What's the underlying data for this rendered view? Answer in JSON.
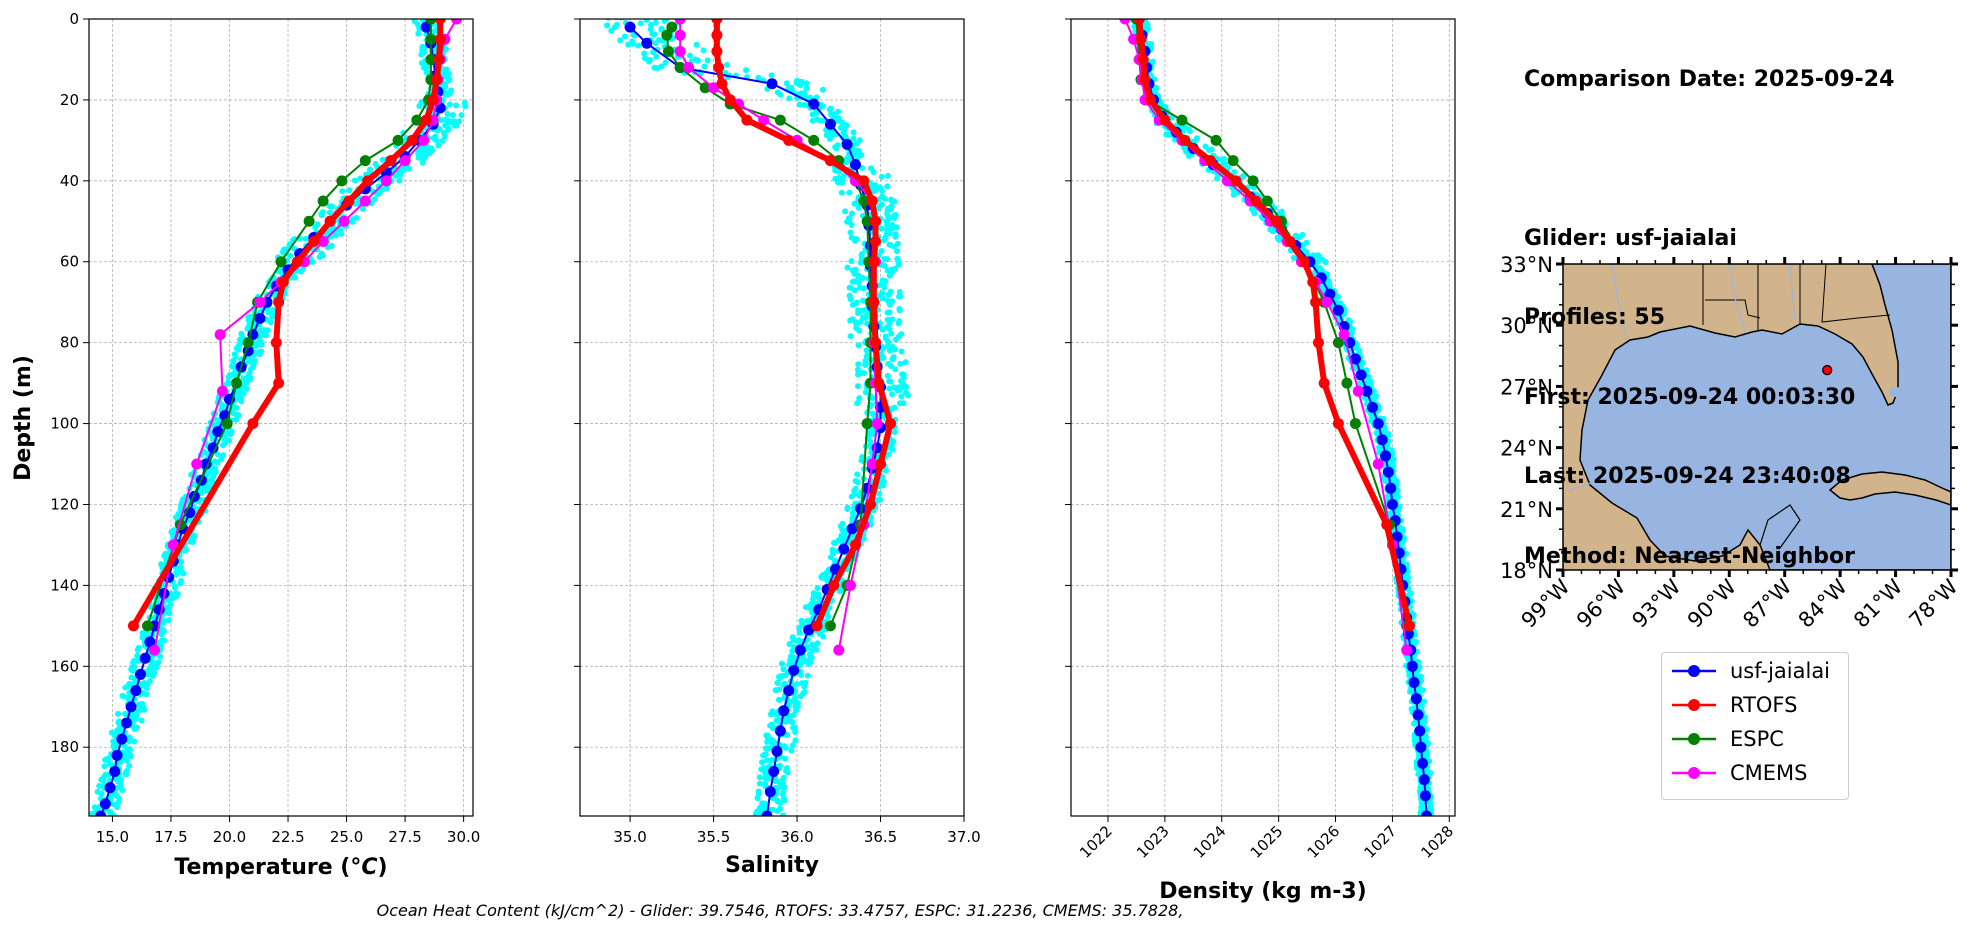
{
  "info": {
    "date_line": "Comparison Date: 2025-09-24",
    "glider_line": "Glider: usf-jaialai",
    "profiles_line": "Profiles: 55",
    "first_line": "First: 2025-09-24 00:03:30",
    "last_line": "Last: 2025-09-24 23:40:08",
    "method_line": "Method: Nearest-Neighbor"
  },
  "footer": "Ocean Heat Content (kJ/cm^2) - Glider: 39.7546,  RTOFS: 33.4757,  ESPC: 31.2236,  CMEMS: 35.7828,",
  "colors": {
    "glider": "#0000ff",
    "rtofs": "#ff0000",
    "espc": "#008000",
    "cmems": "#ff00ff",
    "raw": "#00ffff",
    "ocean": "#98b5e2",
    "land": "#d2b48c",
    "grid": "#b0b0b0"
  },
  "legend": [
    "usf-jaialai",
    "RTOFS",
    "ESPC",
    "CMEMS"
  ],
  "chart_data": [
    {
      "type": "line",
      "title": "",
      "xlabel": "Temperature (°C)",
      "ylabel": "Depth (m)",
      "xlim": [
        14.0,
        30.4
      ],
      "ylim": [
        197,
        0
      ],
      "xticks": [
        15.0,
        17.5,
        20.0,
        22.5,
        25.0,
        27.5,
        30.0
      ],
      "xtick_labels": [
        "15.0",
        "17.5",
        "20.0",
        "22.5",
        "25.0",
        "27.5",
        "30.0"
      ],
      "yticks": [
        0,
        20,
        40,
        60,
        80,
        100,
        120,
        140,
        160,
        180
      ],
      "ytick_labels": [
        "0",
        "20",
        "40",
        "60",
        "80",
        "100",
        "120",
        "140",
        "160",
        "180"
      ],
      "series": [
        {
          "name": "usf-jaialai",
          "depth": [
            2,
            6,
            10,
            14,
            18,
            22,
            26,
            30,
            34,
            38,
            42,
            46,
            50,
            54,
            58,
            62,
            66,
            70,
            74,
            78,
            82,
            86,
            90,
            94,
            98,
            102,
            106,
            110,
            114,
            118,
            122,
            126,
            130,
            134,
            138,
            142,
            146,
            150,
            154,
            158,
            162,
            166,
            170,
            174,
            178,
            182,
            186,
            190,
            194,
            197
          ],
          "values": [
            28.4,
            28.6,
            28.7,
            28.8,
            28.9,
            29.0,
            28.7,
            28.1,
            27.5,
            26.7,
            25.8,
            25.0,
            24.3,
            23.6,
            23.0,
            22.5,
            22.0,
            21.6,
            21.3,
            21.0,
            20.8,
            20.5,
            20.3,
            20.0,
            19.8,
            19.5,
            19.3,
            19.0,
            18.8,
            18.5,
            18.3,
            18.0,
            17.8,
            17.6,
            17.4,
            17.2,
            17.0,
            16.8,
            16.6,
            16.4,
            16.2,
            16.0,
            15.8,
            15.6,
            15.4,
            15.2,
            15.1,
            14.9,
            14.7,
            14.5
          ]
        },
        {
          "name": "RTOFS",
          "depth": [
            0,
            5,
            10,
            15,
            20,
            25,
            30,
            35,
            40,
            45,
            50,
            55,
            60,
            65,
            70,
            80,
            90,
            100,
            150
          ],
          "values": [
            29.0,
            29.0,
            28.95,
            28.85,
            28.7,
            28.4,
            27.8,
            26.9,
            25.9,
            25.1,
            24.3,
            23.6,
            22.9,
            22.3,
            22.1,
            22.0,
            22.1,
            21.0,
            15.9
          ]
        },
        {
          "name": "ESPC",
          "depth": [
            0,
            5,
            10,
            15,
            20,
            25,
            30,
            35,
            40,
            45,
            50,
            60,
            70,
            80,
            90,
            100,
            125,
            150
          ],
          "values": [
            28.6,
            28.6,
            28.6,
            28.6,
            28.5,
            28.0,
            27.2,
            25.8,
            24.8,
            24.0,
            23.4,
            22.2,
            21.2,
            20.8,
            20.3,
            19.9,
            17.9,
            16.5
          ]
        },
        {
          "name": "CMEMS",
          "depth": [
            0,
            5,
            10,
            15,
            20,
            25,
            30,
            35,
            40,
            45,
            50,
            55,
            60,
            65,
            70,
            78,
            92,
            110,
            130,
            156
          ],
          "values": [
            29.7,
            29.2,
            29.0,
            28.9,
            28.85,
            28.7,
            28.3,
            27.5,
            26.7,
            25.8,
            24.9,
            24.0,
            23.2,
            22.2,
            21.3,
            19.6,
            19.7,
            18.6,
            17.6,
            16.8
          ]
        }
      ]
    },
    {
      "type": "line",
      "title": "",
      "xlabel": "Salinity",
      "ylabel": "",
      "xlim": [
        34.7,
        37.0
      ],
      "ylim": [
        197,
        0
      ],
      "xticks": [
        35.0,
        35.5,
        36.0,
        36.5,
        37.0
      ],
      "xtick_labels": [
        "35.0",
        "35.5",
        "36.0",
        "36.5",
        "37.0"
      ],
      "yticks": [
        0,
        20,
        40,
        60,
        80,
        100,
        120,
        140,
        160,
        180
      ],
      "ytick_labels": [],
      "series": [
        {
          "name": "usf-jaialai",
          "depth": [
            2,
            6,
            12,
            16,
            21,
            26,
            31,
            36,
            41,
            46,
            51,
            56,
            61,
            66,
            71,
            76,
            81,
            86,
            91,
            96,
            101,
            106,
            111,
            116,
            121,
            126,
            131,
            136,
            141,
            146,
            151,
            156,
            161,
            166,
            171,
            176,
            181,
            186,
            191,
            197
          ],
          "values": [
            35.0,
            35.1,
            35.3,
            35.85,
            36.1,
            36.2,
            36.3,
            36.35,
            36.38,
            36.42,
            36.43,
            36.44,
            36.44,
            36.45,
            36.45,
            36.46,
            36.47,
            36.48,
            36.5,
            36.5,
            36.5,
            36.48,
            36.45,
            36.42,
            36.38,
            36.33,
            36.28,
            36.23,
            36.18,
            36.13,
            36.07,
            36.02,
            35.98,
            35.95,
            35.92,
            35.9,
            35.88,
            35.86,
            35.84,
            35.82
          ]
        },
        {
          "name": "RTOFS",
          "depth": [
            0,
            4,
            8,
            12,
            16,
            20,
            25,
            30,
            35,
            40,
            45,
            50,
            55,
            60,
            70,
            80,
            90,
            100,
            110,
            120,
            130,
            140,
            150
          ],
          "values": [
            35.52,
            35.52,
            35.52,
            35.53,
            35.55,
            35.6,
            35.7,
            35.95,
            36.2,
            36.4,
            36.45,
            36.47,
            36.47,
            36.46,
            36.46,
            36.47,
            36.49,
            36.56,
            36.5,
            36.44,
            36.35,
            36.22,
            36.12
          ]
        },
        {
          "name": "ESPC",
          "depth": [
            2,
            4,
            8,
            12,
            17,
            21,
            25,
            30,
            35,
            40,
            45,
            50,
            60,
            70,
            80,
            90,
            100,
            125,
            140,
            150
          ],
          "values": [
            35.25,
            35.22,
            35.23,
            35.3,
            35.45,
            35.6,
            35.9,
            36.1,
            36.25,
            36.35,
            36.4,
            36.42,
            36.43,
            36.44,
            36.44,
            36.44,
            36.42,
            36.38,
            36.3,
            36.2
          ]
        },
        {
          "name": "CMEMS",
          "depth": [
            0,
            4,
            8,
            12,
            17,
            21,
            25,
            30,
            35,
            40,
            45,
            50,
            60,
            70,
            80,
            90,
            100,
            110,
            125,
            140,
            156
          ],
          "values": [
            35.3,
            35.3,
            35.3,
            35.35,
            35.5,
            35.65,
            35.8,
            36.0,
            36.2,
            36.35,
            36.45,
            36.47,
            36.47,
            36.46,
            36.46,
            36.47,
            36.48,
            36.45,
            36.4,
            36.32,
            36.25
          ]
        }
      ]
    },
    {
      "type": "line",
      "title": "",
      "xlabel": "Density (kg m-3)",
      "ylabel": "",
      "xlim": [
        1021.35,
        1028.1
      ],
      "ylim": [
        197,
        0
      ],
      "xticks": [
        1022,
        1023,
        1024,
        1025,
        1026,
        1027,
        1028
      ],
      "xtick_labels": [
        "1022",
        "1023",
        "1024",
        "1025",
        "1026",
        "1027",
        "1028"
      ],
      "yticks": [
        0,
        20,
        40,
        60,
        80,
        100,
        120,
        140,
        160,
        180
      ],
      "ytick_labels": [],
      "series": [
        {
          "name": "usf-jaialai",
          "depth": [
            0,
            4,
            8,
            12,
            16,
            20,
            24,
            28,
            32,
            36,
            40,
            44,
            48,
            52,
            56,
            60,
            64,
            68,
            72,
            76,
            80,
            84,
            88,
            92,
            96,
            100,
            104,
            108,
            112,
            116,
            120,
            124,
            128,
            132,
            136,
            140,
            144,
            148,
            152,
            156,
            160,
            164,
            168,
            172,
            176,
            180,
            184,
            188,
            192,
            197
          ],
          "values": [
            1022.55,
            1022.6,
            1022.65,
            1022.68,
            1022.72,
            1022.8,
            1022.95,
            1023.2,
            1023.5,
            1023.85,
            1024.2,
            1024.5,
            1024.8,
            1025.05,
            1025.3,
            1025.55,
            1025.75,
            1025.9,
            1026.05,
            1026.15,
            1026.25,
            1026.35,
            1026.45,
            1026.55,
            1026.65,
            1026.75,
            1026.82,
            1026.88,
            1026.93,
            1026.97,
            1027.0,
            1027.05,
            1027.08,
            1027.12,
            1027.15,
            1027.18,
            1027.22,
            1027.25,
            1027.28,
            1027.32,
            1027.35,
            1027.38,
            1027.42,
            1027.45,
            1027.48,
            1027.5,
            1027.53,
            1027.56,
            1027.58,
            1027.6
          ]
        },
        {
          "name": "RTOFS",
          "depth": [
            0,
            5,
            10,
            15,
            20,
            25,
            30,
            35,
            40,
            45,
            50,
            55,
            60,
            65,
            70,
            80,
            90,
            100,
            125,
            150
          ],
          "values": [
            1022.55,
            1022.58,
            1022.62,
            1022.65,
            1022.75,
            1023.0,
            1023.35,
            1023.8,
            1024.25,
            1024.6,
            1024.95,
            1025.2,
            1025.45,
            1025.6,
            1025.65,
            1025.7,
            1025.8,
            1026.05,
            1026.9,
            1027.3
          ]
        },
        {
          "name": "ESPC",
          "depth": [
            0,
            5,
            10,
            15,
            20,
            25,
            30,
            35,
            40,
            45,
            50,
            60,
            70,
            80,
            90,
            100,
            125,
            150
          ],
          "values": [
            1022.5,
            1022.52,
            1022.55,
            1022.58,
            1022.7,
            1023.3,
            1023.9,
            1024.2,
            1024.55,
            1024.8,
            1025.05,
            1025.45,
            1025.8,
            1026.05,
            1026.2,
            1026.35,
            1026.95,
            1027.25
          ]
        },
        {
          "name": "CMEMS",
          "depth": [
            0,
            5,
            10,
            15,
            20,
            25,
            30,
            35,
            40,
            45,
            50,
            55,
            60,
            65,
            70,
            78,
            92,
            110,
            130,
            156
          ],
          "values": [
            1022.3,
            1022.45,
            1022.55,
            1022.6,
            1022.65,
            1022.9,
            1023.3,
            1023.7,
            1024.1,
            1024.5,
            1024.85,
            1025.15,
            1025.4,
            1025.65,
            1025.85,
            1026.15,
            1026.4,
            1026.75,
            1027.0,
            1027.25
          ]
        }
      ]
    },
    {
      "type": "map",
      "title": "",
      "lon_range": [
        -99,
        -78
      ],
      "lat_range": [
        18,
        33
      ],
      "xtick_labels": [
        "99°W",
        "96°W",
        "93°W",
        "90°W",
        "87°W",
        "84°W",
        "81°W",
        "78°W"
      ],
      "ytick_labels": [
        "33°N",
        "30°N",
        "27°N",
        "24°N",
        "21°N",
        "18°N"
      ],
      "ytick_values": [
        33,
        30,
        27,
        24,
        21,
        18
      ],
      "xtick_values": [
        -99,
        -96,
        -93,
        -90,
        -87,
        -84,
        -81,
        -78
      ],
      "marker": {
        "lon": -84.7,
        "lat": 27.8
      }
    }
  ]
}
